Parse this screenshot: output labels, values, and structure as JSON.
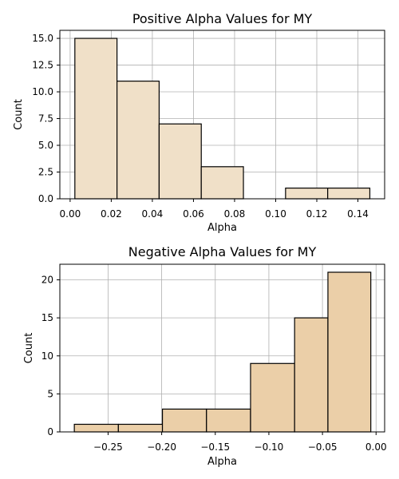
{
  "chart_data": [
    {
      "type": "bar",
      "title": "Positive Alpha Values for MY",
      "xlabel": "Alpha",
      "ylabel": "Count",
      "bar_color": "#f0e0c8",
      "edge_color": "#000000",
      "grid": true,
      "bin_edges": [
        0.0023,
        0.0228,
        0.0433,
        0.0638,
        0.0843,
        0.1048,
        0.1253,
        0.1458
      ],
      "values": [
        15,
        11,
        7,
        3,
        0,
        1,
        1
      ],
      "xlim": [
        -0.005,
        0.153
      ],
      "ylim": [
        0,
        15.75
      ],
      "xticks": [
        {
          "v": 0.0,
          "label": "0.00"
        },
        {
          "v": 0.02,
          "label": "0.02"
        },
        {
          "v": 0.04,
          "label": "0.04"
        },
        {
          "v": 0.06,
          "label": "0.06"
        },
        {
          "v": 0.08,
          "label": "0.08"
        },
        {
          "v": 0.1,
          "label": "0.10"
        },
        {
          "v": 0.12,
          "label": "0.12"
        },
        {
          "v": 0.14,
          "label": "0.14"
        }
      ],
      "yticks": [
        {
          "v": 0,
          "label": "0.0"
        },
        {
          "v": 2.5,
          "label": "2.5"
        },
        {
          "v": 5,
          "label": "5.0"
        },
        {
          "v": 7.5,
          "label": "7.5"
        },
        {
          "v": 10,
          "label": "10.0"
        },
        {
          "v": 12.5,
          "label": "12.5"
        },
        {
          "v": 15,
          "label": "15.0"
        }
      ]
    },
    {
      "type": "bar",
      "title": "Negative Alpha Values for MY",
      "xlabel": "Alpha",
      "ylabel": "Count",
      "bar_color": "#ebcfa8",
      "edge_color": "#000000",
      "grid": true,
      "bin_edges": [
        -0.2815,
        -0.2404,
        -0.1993,
        -0.1582,
        -0.1171,
        -0.076,
        -0.0449,
        -0.0049
      ],
      "values": [
        1,
        1,
        3,
        3,
        9,
        15,
        21
      ],
      "xlim": [
        -0.295,
        0.008
      ],
      "ylim": [
        0,
        22.05
      ],
      "xticks": [
        {
          "v": -0.25,
          "label": "−0.25"
        },
        {
          "v": -0.2,
          "label": "−0.20"
        },
        {
          "v": -0.15,
          "label": "−0.15"
        },
        {
          "v": -0.1,
          "label": "−0.10"
        },
        {
          "v": -0.05,
          "label": "−0.05"
        },
        {
          "v": 0.0,
          "label": "0.00"
        }
      ],
      "yticks": [
        {
          "v": 0,
          "label": "0"
        },
        {
          "v": 5,
          "label": "5"
        },
        {
          "v": 10,
          "label": "10"
        },
        {
          "v": 15,
          "label": "15"
        },
        {
          "v": 20,
          "label": "20"
        }
      ]
    }
  ]
}
